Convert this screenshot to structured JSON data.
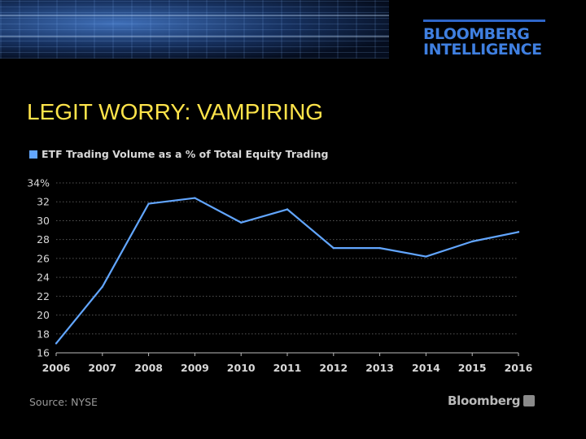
{
  "brand": {
    "line1": "BLOOMBERG",
    "line2": "INTELLIGENCE",
    "color": "#3f7fe0"
  },
  "slide": {
    "title": "LEGIT WORRY: VAMPIRING",
    "title_color": "#ffe44a"
  },
  "footer": {
    "source": "Source: NYSE",
    "logo_text": "Bloomberg"
  },
  "chart_data": {
    "type": "line",
    "legend": "ETF Trading Volume as a % of Total Equity Trading",
    "legend_placement": "top-left",
    "x": [
      "2006",
      "2007",
      "2008",
      "2009",
      "2010",
      "2011",
      "2012",
      "2013",
      "2014",
      "2015",
      "2016"
    ],
    "series": [
      {
        "name": "ETF Trading Volume as a % of Total Equity Trading",
        "values": [
          17.0,
          23.0,
          31.8,
          32.4,
          29.8,
          31.2,
          27.1,
          27.1,
          26.2,
          27.8,
          28.8
        ],
        "color": "#62a6ff"
      }
    ],
    "y_ticks": [
      "34%",
      "32",
      "30",
      "28",
      "26",
      "24",
      "22",
      "20",
      "18",
      "16"
    ],
    "ylim": [
      16,
      34
    ],
    "grid": true,
    "grid_style": "dotted",
    "text_color": "#d8d8d8"
  }
}
